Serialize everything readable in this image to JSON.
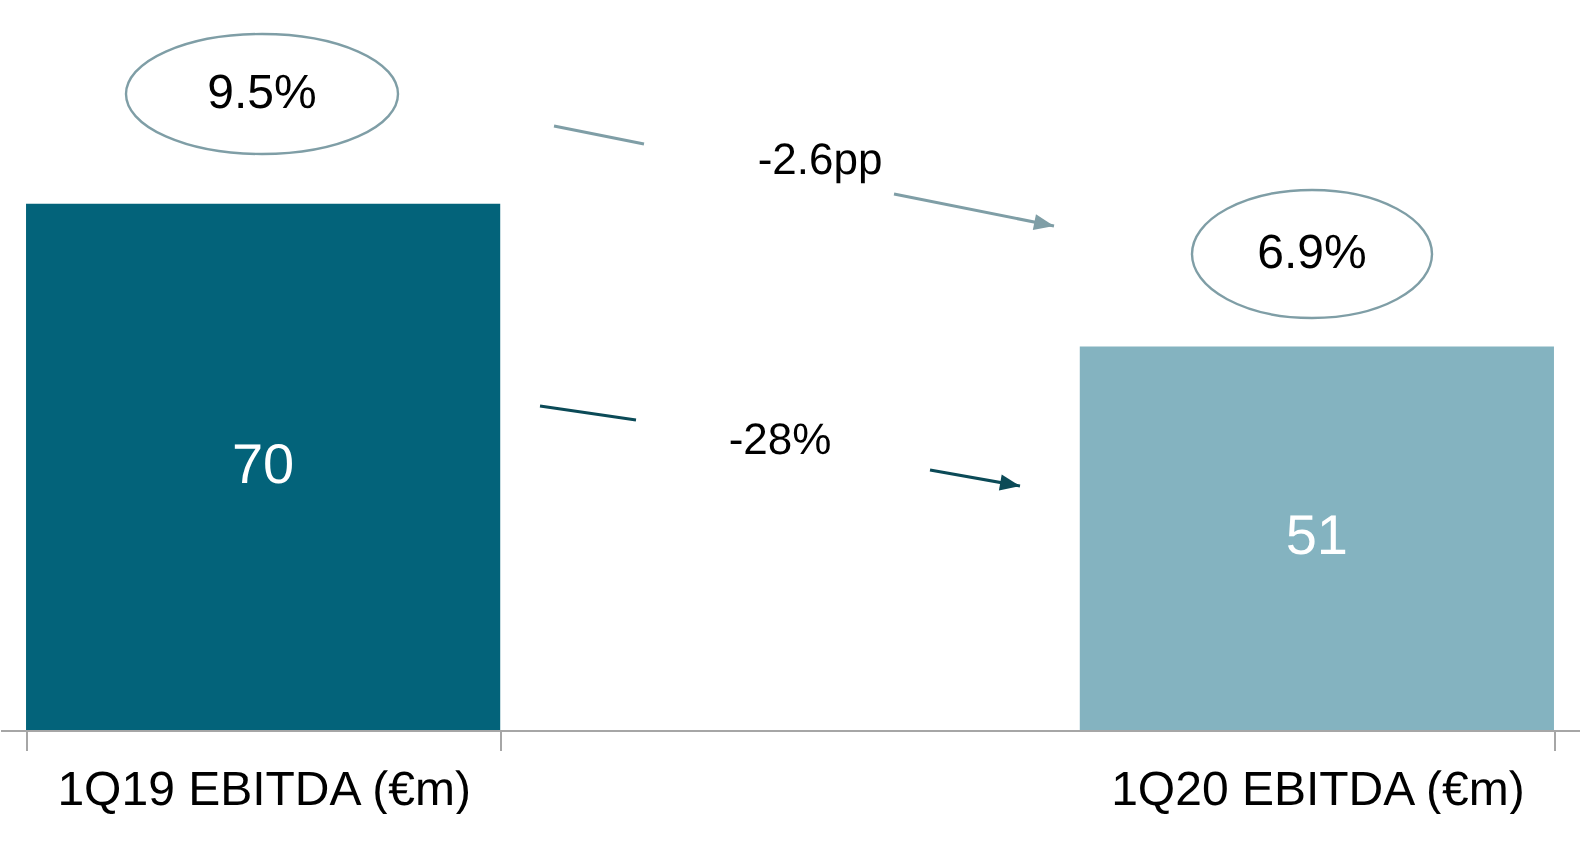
{
  "chart_data": {
    "type": "bar",
    "categories": [
      "1Q19 EBITDA (€m)",
      "1Q20 EBITDA (€m)"
    ],
    "values": [
      70,
      51
    ],
    "colors": [
      "#03637a",
      "#84b3c0"
    ],
    "data_labels": true,
    "tick_labels": "x",
    "annotations": [
      "9.5%",
      "6.9%",
      "-2.6pp",
      "-28%"
    ]
  }
}
